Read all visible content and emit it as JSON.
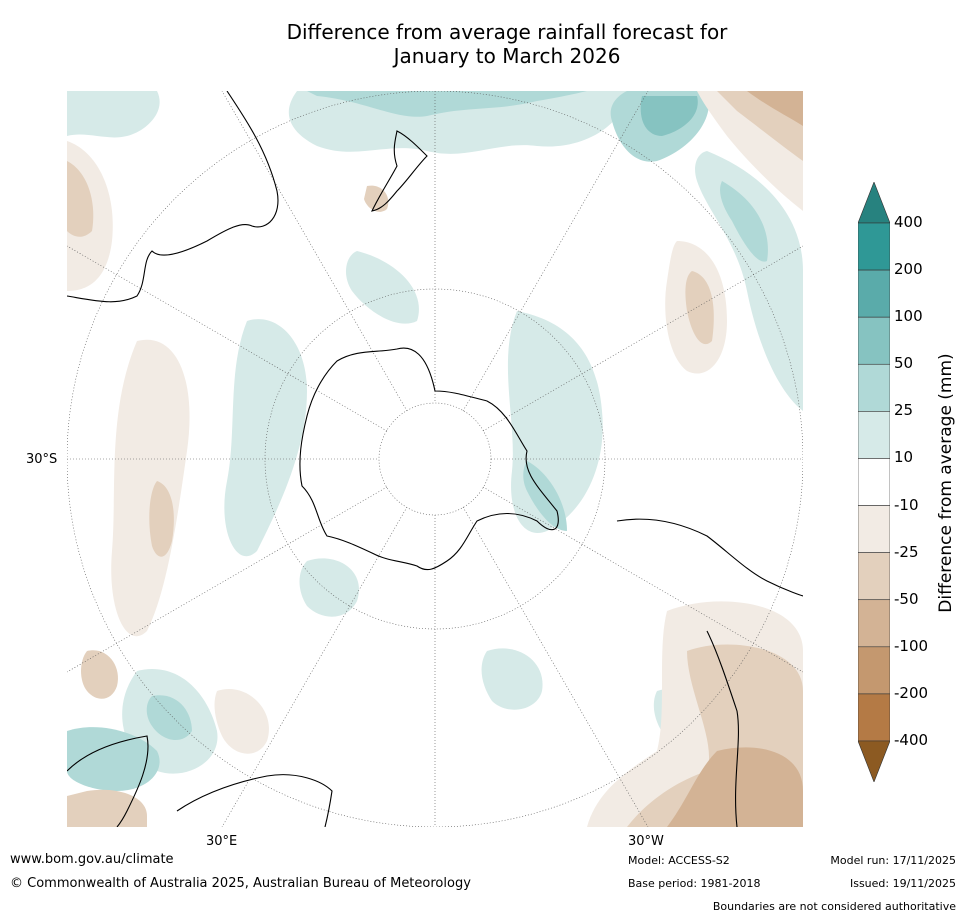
{
  "title": {
    "line1": "Difference from average rainfall forecast for",
    "line2": "January to March 2026"
  },
  "map": {
    "lat_label": "30°S",
    "lon_label_left": "30°E",
    "lon_label_right": "30°W",
    "projection": "south-polar-stereographic",
    "palette": {
      "wet": [
        "#d6eae8",
        "#b0d9d7",
        "#86c3c1",
        "#5aabaa",
        "#2f9896",
        "#1f7b7a"
      ],
      "dry": [
        "#f2ebe4",
        "#e3d0bd",
        "#d3b395",
        "#c4986f",
        "#b47a45",
        "#8c5a22"
      ]
    }
  },
  "colorbar": {
    "title": "Difference from average (mm)",
    "ticks": [
      "400",
      "200",
      "100",
      "50",
      "25",
      "10",
      "-10",
      "-25",
      "-50",
      "-100",
      "-200",
      "-400"
    ],
    "colors": [
      "#27827f",
      "#2f9896",
      "#5aabaa",
      "#86c3c1",
      "#b0d9d7",
      "#d6eae8",
      "#ffffff",
      "#f2ebe4",
      "#e3d0bd",
      "#d3b395",
      "#c4986f",
      "#b47a45",
      "#8c5a22"
    ]
  },
  "footer": {
    "website": "www.bom.gov.au/climate",
    "copyright": "© Commonwealth of Australia 2025, Australian Bureau of Meteorology",
    "model": "Model: ACCESS-S2",
    "base_period": "Base period: 1981-2018",
    "model_run": "Model run: 17/11/2025",
    "issued": "Issued: 19/11/2025",
    "disclaimer": "Boundaries are not considered authoritative"
  }
}
